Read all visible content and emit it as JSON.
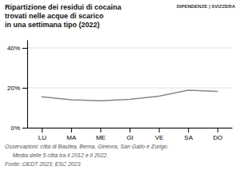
{
  "chart_data": {
    "type": "line",
    "title": "Ripartizione dei residui di cocaina\ntrovati nelle acque di scarico\nin una settimana tipo (2022)",
    "categories": [
      "LU",
      "MA",
      "ME",
      "GI",
      "VE",
      "SA",
      "DO"
    ],
    "values": [
      15.5,
      14.0,
      13.5,
      14.2,
      15.8,
      18.8,
      18.2
    ],
    "color": "#888888",
    "ylim": [
      0,
      44
    ],
    "yticks": [
      {
        "value": 0,
        "label": "0%"
      },
      {
        "value": 20,
        "label": "20%"
      },
      {
        "value": 40,
        "label": "40%"
      }
    ],
    "grid": true,
    "annotations": [
      "DIPENDENZE | SVIZZERA",
      "Osservazioni: città di Basilea, Berna, Ginevra, San Gallo e Zurigo.",
      "     Media delle 5 città tra il 2012 e il 2022.",
      "Fonte: OEDT 2023; ESC 2023"
    ]
  }
}
